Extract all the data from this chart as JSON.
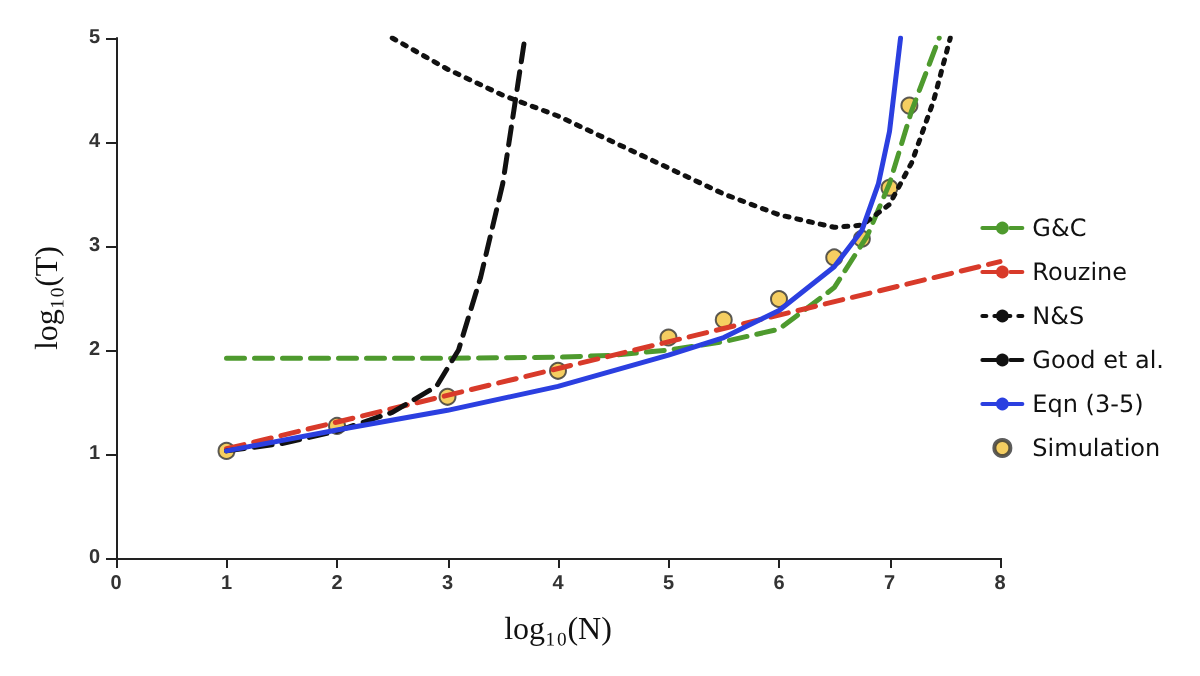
{
  "chart_data": {
    "type": "line",
    "xlabel": "log₁₀(N)",
    "ylabel": "log₁₀(T)",
    "xlim": [
      0,
      8
    ],
    "ylim": [
      0,
      5
    ],
    "xticks": [
      0,
      1,
      2,
      3,
      4,
      5,
      6,
      7,
      8
    ],
    "yticks": [
      0,
      1,
      2,
      3,
      4,
      5
    ],
    "grid": false,
    "legend": "right",
    "marker": "none",
    "series": [
      {
        "name": "G&C",
        "color": "#4e9a2e",
        "line_style": "dashed",
        "x": [
          1,
          2,
          3,
          4,
          4.5,
          5,
          5.5,
          6,
          6.5,
          6.8,
          7,
          7.2,
          7.45
        ],
        "values": [
          1.92,
          1.92,
          1.92,
          1.93,
          1.95,
          2.0,
          2.08,
          2.2,
          2.6,
          3.1,
          3.6,
          4.3,
          5
        ]
      },
      {
        "name": "Rouzine",
        "color": "#d83a2a",
        "line_style": "dashed",
        "x": [
          1,
          8
        ],
        "values": [
          1.05,
          2.85
        ]
      },
      {
        "name": "N&S",
        "color": "#111111",
        "line_style": "dotted",
        "x": [
          2.5,
          3,
          3.5,
          4,
          4.5,
          5,
          5.5,
          6,
          6.5,
          6.75,
          7,
          7.2,
          7.4,
          7.55
        ],
        "values": [
          5,
          4.7,
          4.45,
          4.25,
          4.0,
          3.75,
          3.5,
          3.3,
          3.18,
          3.2,
          3.4,
          3.8,
          4.4,
          5
        ]
      },
      {
        "name": "Good et al.",
        "color": "#111111",
        "line_style": "dashed",
        "x": [
          1,
          1.5,
          2,
          2.5,
          2.9,
          3.1,
          3.3,
          3.5,
          3.6,
          3.7
        ],
        "values": [
          1.03,
          1.1,
          1.22,
          1.4,
          1.65,
          2.0,
          2.7,
          3.6,
          4.3,
          5
        ]
      },
      {
        "name": "Eqn (3-5)",
        "color": "#2b3fe0",
        "line_style": "solid",
        "x": [
          1,
          2,
          3,
          4,
          5,
          5.5,
          6,
          6.5,
          6.75,
          6.9,
          7.0,
          7.1
        ],
        "values": [
          1.03,
          1.23,
          1.42,
          1.65,
          1.95,
          2.12,
          2.38,
          2.8,
          3.15,
          3.6,
          4.1,
          5
        ]
      },
      {
        "name": "Simulation",
        "type": "scatter",
        "marker": "circle",
        "color": "#f2c23a",
        "x": [
          1,
          2,
          3,
          4,
          5,
          5.5,
          6,
          6.5,
          6.75,
          7,
          7.18
        ],
        "values": [
          1.03,
          1.27,
          1.55,
          1.8,
          2.12,
          2.29,
          2.49,
          2.89,
          3.07,
          3.56,
          4.35
        ]
      }
    ]
  }
}
